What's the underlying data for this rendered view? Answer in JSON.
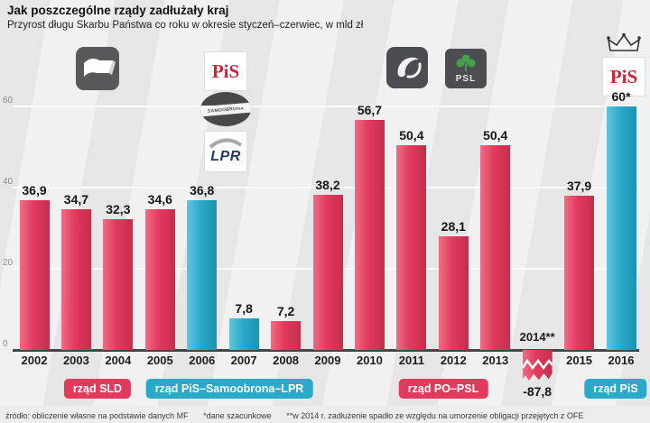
{
  "title": "Jak poszczególne rządy zadłużały kraj",
  "subtitle": "Przyrost długu Skarbu Państwa co roku w okresie styczeń–czerwiec, w mld zł",
  "footer": {
    "source": "źródło: obliczenie własne na podstawie danych MF",
    "note1": "*dane szacunkowe",
    "note2": "**w 2014 r. zadłużenie spadło ze względu na umorzenie obligacji przejętych z OFE"
  },
  "colors": {
    "bar_pink": "#e13a5c",
    "bar_blue": "#2aa9c9",
    "axis": "#454545",
    "background": "#ededed",
    "pis_red": "#cf2339",
    "lpr_navy": "#223a6b",
    "psl_green": "#46a04a"
  },
  "chart_data": {
    "type": "bar",
    "title": "Jak poszczególne rządy zadłużały kraj",
    "subtitle": "Przyrost długu Skarbu Państwa co roku w okresie styczeń–czerwiec, w mld zł",
    "unit": "mld zł",
    "categories": [
      "2002",
      "2003",
      "2004",
      "2005",
      "2006",
      "2007",
      "2008",
      "2009",
      "2010",
      "2011",
      "2012",
      "2013",
      "2014**",
      "2015",
      "2016"
    ],
    "values": [
      36.9,
      34.7,
      32.3,
      34.6,
      36.8,
      7.8,
      7.2,
      38.2,
      56.7,
      50.4,
      28.1,
      50.4,
      -87.8,
      37.9,
      60
    ],
    "value_labels": [
      "36,9",
      "34,7",
      "32,3",
      "34,6",
      "36,8",
      "7,8",
      "7,2",
      "38,2",
      "56,7",
      "50,4",
      "28,1",
      "50,4",
      "-87,8",
      "37,9",
      "60*"
    ],
    "bar_colors": [
      "pink",
      "pink",
      "pink",
      "pink",
      "blue",
      "blue",
      "pink",
      "pink",
      "pink",
      "pink",
      "pink",
      "pink",
      "pink",
      "pink",
      "blue"
    ],
    "yticks": [
      0,
      20,
      40,
      60
    ],
    "ylim": [
      0,
      60
    ],
    "grid": "horizontal white lines",
    "legend_position": "none",
    "negative_bar_note": "2014 bar truncated with torn edge, actual value -87,8"
  },
  "badges": [
    {
      "label": "rząd SLD",
      "color": "pink"
    },
    {
      "label": "rząd PiS–Samoobrona–LPR",
      "color": "blue"
    },
    {
      "label": "rząd PO–PSL",
      "color": "pink"
    },
    {
      "label": "rząd PiS",
      "color": "blue"
    }
  ],
  "logos": {
    "pis": "PiS",
    "samoobrona": "SAMOOBRONA",
    "lpr": "LPR",
    "psl": "PSL",
    "pis_crown": "PiS"
  }
}
